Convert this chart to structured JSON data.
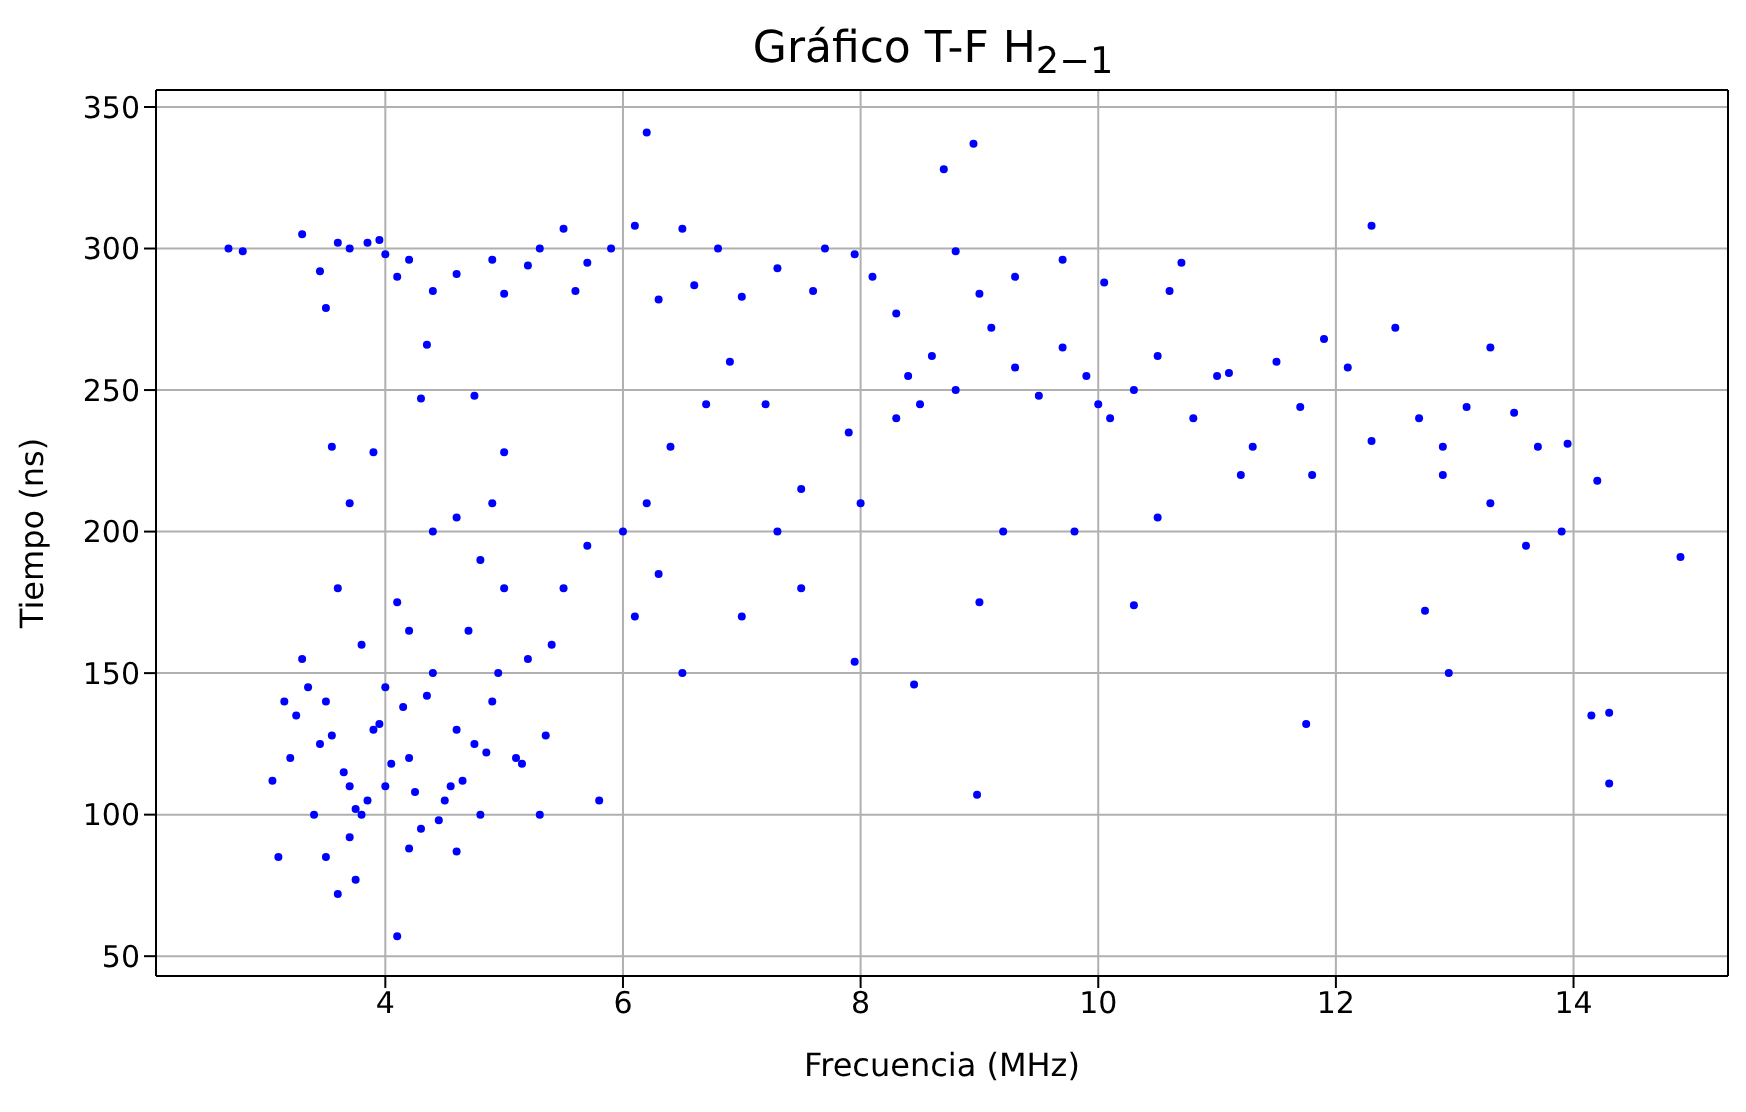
{
  "chart_data": {
    "type": "scatter",
    "title": "Gráfico T-F H$_{2−1}$",
    "xlabel": "Frecuencia (MHz)",
    "ylabel": "Tiempo (ns)",
    "x": [
      2.68,
      2.8,
      3.3,
      3.45,
      3.5,
      3.6,
      3.7,
      3.85,
      3.95,
      4.0,
      4.1,
      4.2,
      4.4,
      4.6,
      4.9,
      5.0,
      5.2,
      5.3,
      5.5,
      5.6,
      5.7,
      5.9,
      6.1,
      6.2,
      6.5,
      6.3,
      6.6,
      6.8,
      7.0,
      7.3,
      7.6,
      7.7,
      7.95,
      8.1,
      8.3,
      8.7,
      8.95,
      8.8,
      9.0,
      9.3,
      9.7,
      10.05,
      10.6,
      10.7,
      12.3,
      11.0,
      10.0,
      8.3,
      8.4,
      8.5,
      8.6,
      8.8,
      9.1,
      9.3,
      9.5,
      9.7,
      9.9,
      10.1,
      10.3,
      10.5,
      10.8,
      11.1,
      11.3,
      11.5,
      11.7,
      11.9,
      12.1,
      12.3,
      12.5,
      12.7,
      12.9,
      13.1,
      13.3,
      13.5,
      13.7,
      13.95,
      14.2,
      14.15,
      14.3,
      14.3,
      14.9,
      13.9,
      13.6,
      12.75,
      12.95,
      11.75,
      10.3,
      9.0,
      8.98,
      8.45,
      7.95,
      9.2,
      9.8,
      10.5,
      11.2,
      11.8,
      12.9,
      13.3,
      8.0,
      7.9,
      7.5,
      7.2,
      6.9,
      6.7,
      6.4,
      6.2,
      6.0,
      6.5,
      6.1,
      5.8,
      5.3,
      5.5,
      5.7,
      5.4,
      6.3,
      7.0,
      7.3,
      7.5,
      5.0,
      4.75,
      4.3,
      4.35,
      3.9,
      4.1,
      3.6,
      3.8,
      3.1,
      3.2,
      3.3,
      3.5,
      3.6,
      3.7,
      3.8,
      3.9,
      4.0,
      4.0,
      4.1,
      4.2,
      4.3,
      4.4,
      4.5,
      4.6,
      4.7,
      4.8,
      4.9,
      5.0,
      5.1,
      5.2,
      3.4,
      3.5,
      3.7,
      3.75,
      4.2,
      4.6,
      4.4,
      4.6,
      4.9,
      3.7,
      3.55,
      3.05,
      3.25,
      3.45,
      3.65,
      3.85,
      4.05,
      4.25,
      4.45,
      4.65,
      4.85,
      3.35,
      3.55,
      3.75,
      3.95,
      4.15,
      4.35,
      4.55,
      4.75,
      4.95,
      3.15,
      5.15,
      5.35,
      4.8,
      4.2
    ],
    "values": [
      300,
      299,
      305,
      292,
      279,
      302,
      300,
      302,
      303,
      298,
      290,
      296,
      285,
      291,
      296,
      284,
      294,
      300,
      307,
      285,
      295,
      300,
      308,
      341,
      307,
      282,
      287,
      300,
      283,
      293,
      285,
      300,
      298,
      290,
      277,
      328,
      337,
      299,
      284,
      290,
      296,
      288,
      285,
      295,
      308,
      255,
      245,
      240,
      255,
      245,
      262,
      250,
      272,
      258,
      248,
      265,
      255,
      240,
      250,
      262,
      240,
      256,
      230,
      260,
      244,
      268,
      258,
      232,
      272,
      240,
      230,
      244,
      265,
      242,
      230,
      231,
      218,
      135,
      136,
      111,
      191,
      200,
      195,
      172,
      150,
      132,
      174,
      175,
      107,
      146,
      154,
      200,
      200,
      205,
      220,
      220,
      220,
      210,
      210,
      235,
      215,
      245,
      260,
      245,
      230,
      210,
      200,
      150,
      170,
      105,
      100,
      180,
      195,
      160,
      185,
      170,
      200,
      180,
      228,
      248,
      247,
      266,
      228,
      57,
      72,
      100,
      85,
      120,
      155,
      140,
      180,
      110,
      160,
      130,
      145,
      110,
      175,
      120,
      95,
      150,
      105,
      130,
      165,
      100,
      140,
      180,
      120,
      155,
      100,
      85,
      92,
      77,
      88,
      87,
      200,
      205,
      210,
      210,
      230,
      112,
      135,
      125,
      115,
      105,
      118,
      108,
      98,
      112,
      122,
      145,
      128,
      102,
      132,
      138,
      142,
      110,
      125,
      150,
      140,
      118,
      128,
      190,
      165
    ],
    "color": "#0000ff",
    "marker": "circle",
    "xlim": [
      2.07,
      15.3
    ],
    "ylim": [
      43,
      356
    ],
    "xticks": [
      4,
      6,
      8,
      10,
      12,
      14
    ],
    "yticks": [
      50,
      100,
      150,
      200,
      250,
      300,
      350
    ],
    "grid": true
  }
}
